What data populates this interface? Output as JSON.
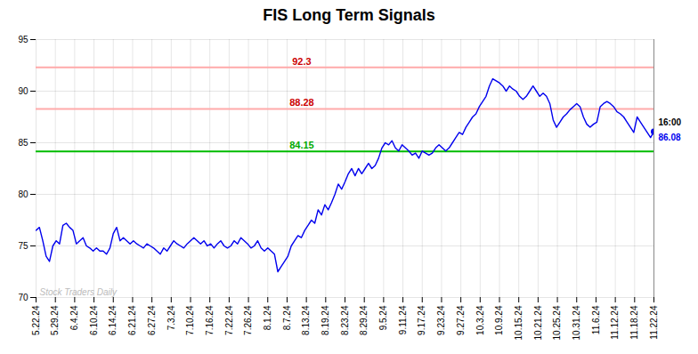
{
  "chart_data": {
    "type": "line",
    "title": "FIS Long Term Signals",
    "color": "#0000ee",
    "values": [
      76.5,
      76.8,
      75.5,
      74.0,
      73.5,
      75.0,
      75.5,
      75.2,
      77.0,
      77.2,
      76.8,
      76.5,
      75.2,
      75.5,
      75.8,
      75.0,
      74.8,
      74.5,
      74.8,
      74.5,
      74.5,
      74.2,
      74.8,
      76.2,
      76.8,
      75.5,
      75.8,
      75.5,
      75.2,
      75.5,
      75.2,
      75.0,
      74.8,
      75.2,
      75.0,
      74.8,
      74.5,
      74.2,
      74.8,
      74.5,
      75.0,
      75.5,
      75.2,
      75.0,
      74.8,
      75.2,
      75.5,
      75.8,
      75.5,
      75.2,
      75.5,
      75.0,
      75.2,
      74.8,
      75.2,
      75.5,
      75.0,
      74.8,
      75.0,
      75.5,
      75.2,
      75.8,
      75.5,
      75.2,
      74.8,
      75.0,
      75.5,
      74.8,
      74.5,
      74.8,
      74.5,
      74.2,
      72.5,
      73.0,
      73.5,
      74.0,
      75.0,
      75.5,
      76.0,
      75.8,
      76.5,
      77.0,
      77.5,
      77.2,
      78.5,
      78.0,
      79.0,
      78.5,
      79.2,
      80.0,
      81.0,
      80.5,
      81.2,
      82.0,
      82.5,
      81.8,
      82.5,
      82.0,
      82.5,
      83.0,
      82.5,
      82.8,
      83.5,
      84.5,
      85.0,
      84.8,
      85.2,
      84.5,
      84.2,
      84.8,
      84.5,
      84.2,
      83.8,
      84.0,
      83.5,
      84.2,
      84.0,
      83.8,
      84.0,
      84.5,
      84.8,
      84.5,
      84.2,
      84.5,
      85.0,
      85.5,
      86.0,
      85.8,
      86.5,
      87.0,
      87.5,
      87.8,
      88.5,
      89.0,
      89.5,
      90.5,
      91.2,
      91.0,
      90.8,
      90.5,
      90.0,
      90.5,
      90.2,
      90.0,
      89.5,
      89.2,
      89.5,
      90.0,
      90.5,
      90.0,
      89.5,
      89.8,
      89.5,
      88.8,
      87.2,
      86.5,
      87.0,
      87.5,
      87.8,
      88.2,
      88.5,
      88.8,
      88.5,
      87.5,
      86.8,
      86.5,
      86.8,
      87.0,
      88.5,
      88.8,
      89.0,
      88.8,
      88.5,
      88.0,
      87.8,
      87.5,
      87.0,
      86.5,
      86.0,
      87.5,
      87.0,
      86.5,
      86.0,
      85.5,
      86.08
    ],
    "xlim": [
      0,
      184
    ],
    "xticks": [
      {
        "value": 0,
        "label": "5.22.24"
      },
      {
        "value": 5.75,
        "label": "5.29.24"
      },
      {
        "value": 11.5,
        "label": "6.4.24"
      },
      {
        "value": 17.25,
        "label": "6.10.24"
      },
      {
        "value": 23,
        "label": "6.14.24"
      },
      {
        "value": 28.75,
        "label": "6.21.24"
      },
      {
        "value": 34.5,
        "label": "6.27.24"
      },
      {
        "value": 40.25,
        "label": "7.3.24"
      },
      {
        "value": 46,
        "label": "7.10.24"
      },
      {
        "value": 51.75,
        "label": "7.16.24"
      },
      {
        "value": 57.5,
        "label": "7.22.24"
      },
      {
        "value": 63.25,
        "label": "7.26.24"
      },
      {
        "value": 69,
        "label": "8.1.24"
      },
      {
        "value": 74.75,
        "label": "8.7.24"
      },
      {
        "value": 80.5,
        "label": "8.13.24"
      },
      {
        "value": 86.25,
        "label": "8.19.24"
      },
      {
        "value": 92,
        "label": "8.23.24"
      },
      {
        "value": 97.75,
        "label": "8.29.24"
      },
      {
        "value": 103.5,
        "label": "9.5.24"
      },
      {
        "value": 109.25,
        "label": "9.11.24"
      },
      {
        "value": 115,
        "label": "9.17.24"
      },
      {
        "value": 120.75,
        "label": "9.23.24"
      },
      {
        "value": 126.5,
        "label": "9.27.24"
      },
      {
        "value": 132.25,
        "label": "10.3.24"
      },
      {
        "value": 138,
        "label": "10.9.24"
      },
      {
        "value": 143.75,
        "label": "10.15.24"
      },
      {
        "value": 149.5,
        "label": "10.21.24"
      },
      {
        "value": 155.25,
        "label": "10.25.24"
      },
      {
        "value": 161,
        "label": "10.31.24"
      },
      {
        "value": 166.75,
        "label": "11.6.24"
      },
      {
        "value": 172.5,
        "label": "11.12.24"
      },
      {
        "value": 178.25,
        "label": "11.18.24"
      },
      {
        "value": 184,
        "label": "11.22.24"
      }
    ],
    "ylim": [
      70,
      95
    ],
    "yticks": [
      70,
      75,
      80,
      85,
      90,
      95
    ],
    "grid": true,
    "hlines": [
      {
        "y": 84.15,
        "color": "#00bb00",
        "label": "84.15",
        "label_color": "#00aa00"
      },
      {
        "y": 88.28,
        "color": "#ffaaaa",
        "label": "88.28",
        "label_color": "#cc0000"
      },
      {
        "y": 92.3,
        "color": "#ffaaaa",
        "label": "92.3",
        "label_color": "#cc0000"
      }
    ],
    "vline": {
      "x": 184,
      "color": "#888888"
    },
    "last_point": {
      "x": 184,
      "y": 86.08,
      "label": "16:00",
      "label_color": "#000000",
      "value_label": "86.08"
    },
    "watermark": {
      "text": "Stock Traders Daily",
      "color": "#bbbbbb"
    }
  }
}
